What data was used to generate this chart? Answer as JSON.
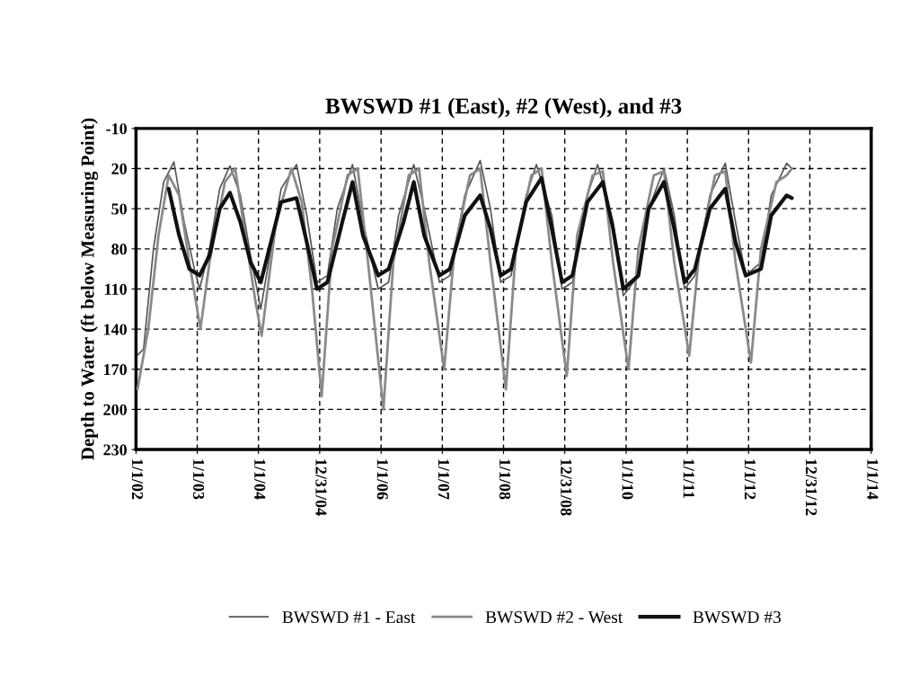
{
  "chart_data": {
    "type": "line",
    "title": "BWSWD #1 (East), #2 (West), and #3",
    "ylabel": "Depth to Water (ft below Measuring Point)",
    "xlim": [
      "2002-01-01",
      "2014-01-01"
    ],
    "xticks": [
      {
        "value": "2002-01-01",
        "label": "1/1/02"
      },
      {
        "value": "2003-01-01",
        "label": "1/1/03"
      },
      {
        "value": "2004-01-01",
        "label": "1/1/04"
      },
      {
        "value": "2004-12-31",
        "label": "12/31/04"
      },
      {
        "value": "2006-01-01",
        "label": "1/1/06"
      },
      {
        "value": "2007-01-01",
        "label": "1/1/07"
      },
      {
        "value": "2008-01-01",
        "label": "1/1/08"
      },
      {
        "value": "2008-12-31",
        "label": "12/31/08"
      },
      {
        "value": "2010-01-01",
        "label": "1/1/10"
      },
      {
        "value": "2011-01-01",
        "label": "1/1/11"
      },
      {
        "value": "2012-01-01",
        "label": "1/1/12"
      },
      {
        "value": "2012-12-31",
        "label": "12/31/12"
      },
      {
        "value": "2014-01-01",
        "label": "1/1/14"
      }
    ],
    "ylim": [
      230,
      -10
    ],
    "yticks": [
      -10,
      20,
      50,
      80,
      110,
      140,
      170,
      200,
      230
    ],
    "grid": true,
    "legend": "bottom",
    "line_style": "solid",
    "marker": "none",
    "series": [
      {
        "name": "BWSWD #1 - East",
        "color": "#555555",
        "x": [
          "2002-01-05",
          "2002-02",
          "2002-04",
          "2002-06",
          "2002-08",
          "2002-10",
          "2002-12",
          "2003-01-15",
          "2003-03",
          "2003-05",
          "2003-07",
          "2003-09",
          "2003-11",
          "2004-01-15",
          "2004-03",
          "2004-05",
          "2004-08",
          "2004-10",
          "2004-12",
          "2005-02",
          "2005-04",
          "2005-07",
          "2005-09",
          "2005-12",
          "2006-02",
          "2006-04",
          "2006-07",
          "2006-09",
          "2006-12",
          "2007-02",
          "2007-05",
          "2007-08",
          "2007-10",
          "2007-12",
          "2008-02",
          "2008-05",
          "2008-07",
          "2008-10",
          "2008-12",
          "2009-02",
          "2009-05",
          "2009-07",
          "2009-10",
          "2009-12",
          "2010-03",
          "2010-05",
          "2010-08",
          "2010-10",
          "2010-12",
          "2011-02",
          "2011-05",
          "2011-08",
          "2011-10",
          "2011-12",
          "2012-03",
          "2012-05",
          "2012-08",
          "2012-09"
        ],
        "values": [
          160,
          155,
          80,
          30,
          15,
          60,
          95,
          110,
          80,
          35,
          18,
          40,
          85,
          125,
          80,
          35,
          17,
          55,
          105,
          100,
          50,
          17,
          60,
          110,
          105,
          55,
          17,
          50,
          105,
          100,
          40,
          14,
          50,
          105,
          100,
          40,
          17,
          55,
          110,
          105,
          40,
          17,
          60,
          115,
          100,
          50,
          20,
          55,
          110,
          100,
          40,
          16,
          60,
          100,
          90,
          40,
          16,
          20
        ]
      },
      {
        "name": "BWSWD #2 - West",
        "color": "#8a8a8a",
        "x": [
          "2002-01-10",
          "2002-03",
          "2002-05",
          "2002-07",
          "2002-09",
          "2002-11",
          "2003-01-20",
          "2003-03",
          "2003-06",
          "2003-08",
          "2003-10",
          "2003-12",
          "2004-01-20",
          "2004-04",
          "2004-07",
          "2004-09",
          "2004-11",
          "2005-01-12",
          "2005-03",
          "2005-06",
          "2005-08",
          "2005-10",
          "2006-01-15",
          "2006-03",
          "2006-06",
          "2006-08",
          "2006-10",
          "2007-01-12",
          "2007-03",
          "2007-06",
          "2007-08",
          "2007-10",
          "2008-01-15",
          "2008-03",
          "2008-06",
          "2008-08",
          "2008-10",
          "2009-01-12",
          "2009-03",
          "2009-06",
          "2009-08",
          "2009-10",
          "2010-01-15",
          "2010-03",
          "2010-06",
          "2010-08",
          "2010-10",
          "2011-01-12",
          "2011-03",
          "2011-06",
          "2011-08",
          "2011-10",
          "2012-01-15",
          "2012-03",
          "2012-06",
          "2012-08",
          "2012-09"
        ],
        "values": [
          185,
          140,
          70,
          25,
          40,
          90,
          140,
          90,
          30,
          20,
          70,
          120,
          145,
          60,
          20,
          45,
          110,
          190,
          80,
          25,
          20,
          90,
          200,
          90,
          25,
          20,
          90,
          170,
          80,
          25,
          20,
          90,
          185,
          80,
          25,
          20,
          90,
          175,
          70,
          25,
          22,
          90,
          170,
          80,
          25,
          22,
          90,
          160,
          80,
          25,
          22,
          90,
          165,
          80,
          30,
          25,
          20
        ]
      },
      {
        "name": "BWSWD #3",
        "color": "#111111",
        "x": [
          "2002-07",
          "2002-09",
          "2002-11",
          "2003-01-15",
          "2003-03",
          "2003-05",
          "2003-07",
          "2003-09",
          "2003-11",
          "2004-01-15",
          "2004-03",
          "2004-05",
          "2004-08",
          "2004-10",
          "2004-12",
          "2005-02",
          "2005-05",
          "2005-07",
          "2005-09",
          "2005-12",
          "2006-02",
          "2006-05",
          "2006-07",
          "2006-09",
          "2006-12",
          "2007-02",
          "2007-05",
          "2007-08",
          "2007-10",
          "2007-12",
          "2008-02",
          "2008-05",
          "2008-08",
          "2008-10",
          "2008-12",
          "2009-02",
          "2009-05",
          "2009-08",
          "2009-10",
          "2009-12",
          "2010-03",
          "2010-05",
          "2010-08",
          "2010-10",
          "2010-12",
          "2011-02",
          "2011-05",
          "2011-08",
          "2011-10",
          "2011-12",
          "2012-03",
          "2012-05",
          "2012-08",
          "2012-09"
        ],
        "values": [
          35,
          70,
          95,
          100,
          85,
          50,
          38,
          60,
          90,
          105,
          75,
          45,
          42,
          75,
          110,
          105,
          60,
          30,
          70,
          100,
          95,
          60,
          30,
          70,
          100,
          95,
          55,
          40,
          65,
          100,
          95,
          45,
          27,
          65,
          105,
          100,
          45,
          30,
          65,
          110,
          100,
          50,
          30,
          65,
          105,
          95,
          50,
          35,
          75,
          100,
          95,
          55,
          40,
          42
        ]
      }
    ]
  }
}
